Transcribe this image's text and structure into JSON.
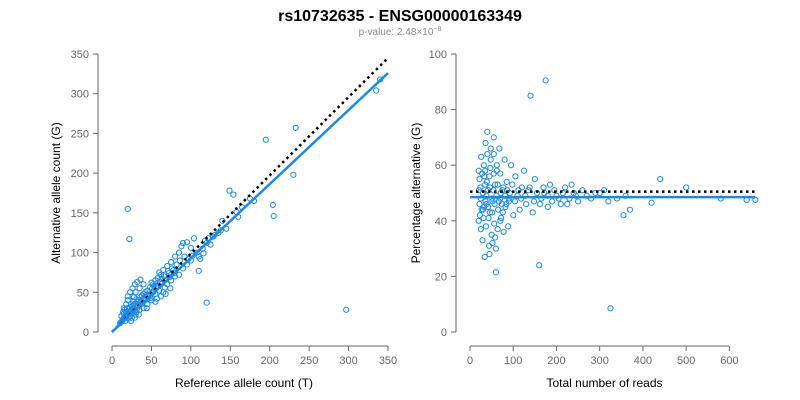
{
  "figure": {
    "title": "rs10732635 - ENSG00000163349",
    "subtitle_prefix": "p-value: 2.48×10",
    "subtitle_exp": "−8"
  },
  "colors": {
    "points": "#1e88e5",
    "fit": "#1e88e5",
    "reference": "#000000",
    "axis": "#666666"
  },
  "chart_data": [
    {
      "type": "scatter",
      "xlabel": "Reference allele count (T)",
      "ylabel": "Alternative allele count (G)",
      "xlim": [
        0,
        350
      ],
      "ylim": [
        0,
        350
      ],
      "xticks": [
        0,
        50,
        100,
        150,
        200,
        250,
        300,
        350
      ],
      "yticks": [
        0,
        50,
        100,
        150,
        200,
        250,
        300,
        350
      ],
      "grid": false,
      "fit_line": [
        [
          0,
          0
        ],
        [
          350,
          326
        ]
      ],
      "reference_line": [
        [
          0,
          0
        ],
        [
          350,
          345
        ]
      ],
      "points": [
        [
          20,
          155
        ],
        [
          22,
          117
        ],
        [
          195,
          242
        ],
        [
          233,
          257
        ],
        [
          340,
          318
        ],
        [
          335,
          304
        ],
        [
          297,
          28
        ],
        [
          120,
          37
        ],
        [
          204,
          160
        ],
        [
          205,
          146
        ],
        [
          230,
          198
        ],
        [
          175,
          168
        ],
        [
          149,
          178
        ],
        [
          154,
          173
        ],
        [
          165,
          157
        ],
        [
          158,
          151
        ],
        [
          140,
          140
        ],
        [
          135,
          125
        ],
        [
          128,
          120
        ],
        [
          120,
          112
        ],
        [
          116,
          99
        ],
        [
          112,
          92
        ],
        [
          110,
          77
        ],
        [
          104,
          118
        ],
        [
          100,
          106
        ],
        [
          95,
          113
        ],
        [
          90,
          112
        ],
        [
          88,
          108
        ],
        [
          85,
          100
        ],
        [
          80,
          95
        ],
        [
          75,
          88
        ],
        [
          70,
          83
        ],
        [
          65,
          78
        ],
        [
          62,
          72
        ],
        [
          60,
          75
        ],
        [
          58,
          68
        ],
        [
          55,
          65
        ],
        [
          52,
          60
        ],
        [
          50,
          62
        ],
        [
          48,
          56
        ],
        [
          45,
          52
        ],
        [
          42,
          50
        ],
        [
          40,
          48
        ],
        [
          38,
          46
        ],
        [
          36,
          44
        ],
        [
          34,
          40
        ],
        [
          32,
          38
        ],
        [
          30,
          36
        ],
        [
          28,
          35
        ],
        [
          27,
          30
        ],
        [
          26,
          33
        ],
        [
          25,
          28
        ],
        [
          24,
          27
        ],
        [
          23,
          25
        ],
        [
          22,
          26
        ],
        [
          21,
          24
        ],
        [
          20,
          22
        ],
        [
          19,
          21
        ],
        [
          18,
          20
        ],
        [
          17,
          19
        ],
        [
          16,
          18
        ],
        [
          15,
          17
        ],
        [
          14,
          16
        ],
        [
          13,
          14
        ],
        [
          12,
          13
        ],
        [
          11,
          12
        ],
        [
          10,
          11
        ],
        [
          15,
          23
        ],
        [
          18,
          25
        ],
        [
          25,
          18
        ],
        [
          30,
          22
        ],
        [
          35,
          28
        ],
        [
          40,
          30
        ],
        [
          45,
          35
        ],
        [
          50,
          40
        ],
        [
          55,
          48
        ],
        [
          60,
          52
        ],
        [
          70,
          60
        ],
        [
          80,
          70
        ],
        [
          90,
          80
        ],
        [
          100,
          90
        ],
        [
          110,
          95
        ],
        [
          125,
          110
        ],
        [
          145,
          130
        ],
        [
          160,
          145
        ],
        [
          180,
          165
        ],
        [
          26,
          45
        ],
        [
          30,
          50
        ],
        [
          35,
          55
        ],
        [
          40,
          60
        ],
        [
          45,
          42
        ],
        [
          55,
          38
        ],
        [
          65,
          50
        ],
        [
          75,
          65
        ],
        [
          85,
          72
        ],
        [
          95,
          85
        ],
        [
          20,
          40
        ],
        [
          24,
          35
        ],
        [
          28,
          44
        ],
        [
          32,
          30
        ],
        [
          38,
          36
        ],
        [
          42,
          40
        ],
        [
          48,
          45
        ],
        [
          52,
          50
        ],
        [
          58,
          58
        ],
        [
          64,
          62
        ],
        [
          68,
          66
        ],
        [
          72,
          74
        ],
        [
          78,
          78
        ],
        [
          82,
          85
        ],
        [
          86,
          90
        ],
        [
          92,
          95
        ],
        [
          14,
          25
        ],
        [
          16,
          28
        ],
        [
          19,
          30
        ],
        [
          22,
          20
        ],
        [
          26,
          24
        ],
        [
          29,
          27
        ],
        [
          33,
          33
        ],
        [
          37,
          39
        ],
        [
          41,
          43
        ],
        [
          46,
          47
        ],
        [
          51,
          55
        ],
        [
          56,
          57
        ],
        [
          61,
          63
        ],
        [
          66,
          70
        ],
        [
          71,
          77
        ],
        [
          76,
          80
        ],
        [
          12,
          20
        ],
        [
          17,
          14
        ],
        [
          21,
          17
        ],
        [
          23,
          31
        ],
        [
          27,
          38
        ],
        [
          31,
          25
        ],
        [
          36,
          34
        ],
        [
          39,
          41
        ],
        [
          44,
          47
        ],
        [
          49,
          43
        ],
        [
          53,
          58
        ],
        [
          57,
          61
        ],
        [
          63,
          67
        ],
        [
          67,
          56
        ],
        [
          73,
          69
        ],
        [
          79,
          74
        ],
        [
          108,
          100
        ],
        [
          115,
          105
        ],
        [
          122,
          118
        ],
        [
          130,
          122
        ],
        [
          138,
          128
        ],
        [
          118,
          115
        ],
        [
          102,
          96
        ],
        [
          97,
          92
        ],
        [
          62,
          45
        ],
        [
          68,
          48
        ],
        [
          74,
          55
        ],
        [
          57,
          42
        ],
        [
          44,
          30
        ],
        [
          34,
          22
        ],
        [
          29,
          18
        ],
        [
          24,
          14
        ],
        [
          15,
          30
        ],
        [
          18,
          35
        ],
        [
          20,
          45
        ],
        [
          23,
          50
        ],
        [
          26,
          55
        ],
        [
          29,
          60
        ],
        [
          32,
          63
        ],
        [
          36,
          66
        ]
      ]
    },
    {
      "type": "scatter",
      "xlabel": "Total number of reads",
      "ylabel": "Percentage alternative (G)",
      "xlim": [
        0,
        650
      ],
      "ylim": [
        0,
        100
      ],
      "xticks": [
        0,
        100,
        200,
        300,
        400,
        500,
        600
      ],
      "yticks": [
        0,
        20,
        40,
        60,
        80,
        100
      ],
      "grid": false,
      "fit_line": [
        [
          0,
          48.5
        ],
        [
          660,
          48.5
        ]
      ],
      "reference_line": [
        [
          0,
          50.5
        ],
        [
          660,
          50.5
        ]
      ],
      "points": [
        [
          175,
          90.5
        ],
        [
          140,
          85
        ],
        [
          325,
          8.5
        ],
        [
          160,
          24
        ],
        [
          60,
          21.5
        ],
        [
          660,
          47.5
        ],
        [
          640,
          47.5
        ],
        [
          580,
          48
        ],
        [
          500,
          52
        ],
        [
          440,
          55
        ],
        [
          420,
          46.5
        ],
        [
          370,
          44
        ],
        [
          355,
          42
        ],
        [
          360,
          49
        ],
        [
          340,
          48
        ],
        [
          310,
          51
        ],
        [
          290,
          50
        ],
        [
          270,
          49
        ],
        [
          250,
          47
        ],
        [
          240,
          50
        ],
        [
          230,
          48
        ],
        [
          220,
          52
        ],
        [
          210,
          46
        ],
        [
          200,
          49
        ],
        [
          190,
          47
        ],
        [
          185,
          53
        ],
        [
          180,
          45
        ],
        [
          172,
          50
        ],
        [
          165,
          48
        ],
        [
          150,
          55
        ],
        [
          145,
          43
        ],
        [
          135,
          51
        ],
        [
          130,
          46
        ],
        [
          125,
          58
        ],
        [
          120,
          52
        ],
        [
          115,
          44
        ],
        [
          110,
          49
        ],
        [
          105,
          56
        ],
        [
          100,
          42
        ],
        [
          95,
          60
        ],
        [
          90,
          47
        ],
        [
          88,
          38
        ],
        [
          85,
          54
        ],
        [
          82,
          45
        ],
        [
          80,
          62
        ],
        [
          78,
          36
        ],
        [
          75,
          51
        ],
        [
          72,
          41
        ],
        [
          70,
          48
        ],
        [
          68,
          66
        ],
        [
          65,
          44
        ],
        [
          62,
          58
        ],
        [
          60,
          30
        ],
        [
          58,
          53
        ],
        [
          56,
          39
        ],
        [
          55,
          70
        ],
        [
          52,
          47
        ],
        [
          50,
          35
        ],
        [
          48,
          62
        ],
        [
          46,
          43
        ],
        [
          45,
          56
        ],
        [
          44,
          31
        ],
        [
          42,
          51
        ],
        [
          40,
          64
        ],
        [
          38,
          46
        ],
        [
          37,
          38
        ],
        [
          36,
          68
        ],
        [
          35,
          53
        ],
        [
          34,
          27
        ],
        [
          33,
          45
        ],
        [
          32,
          60
        ],
        [
          31,
          41
        ],
        [
          30,
          50
        ],
        [
          29,
          33
        ],
        [
          28,
          57
        ],
        [
          27,
          44
        ],
        [
          26,
          63
        ],
        [
          25,
          48
        ],
        [
          25,
          37
        ],
        [
          24,
          52
        ],
        [
          23,
          42
        ],
        [
          22,
          55
        ],
        [
          22,
          46
        ],
        [
          21,
          51
        ],
        [
          20,
          58
        ],
        [
          20,
          40
        ],
        [
          40,
          72
        ],
        [
          48,
          66
        ],
        [
          55,
          64
        ],
        [
          62,
          60
        ],
        [
          70,
          57
        ],
        [
          45,
          28
        ],
        [
          52,
          32
        ],
        [
          58,
          34
        ],
        [
          64,
          37
        ],
        [
          70,
          40
        ],
        [
          76,
          43
        ],
        [
          84,
          46
        ],
        [
          92,
          50
        ],
        [
          98,
          53
        ],
        [
          104,
          47
        ],
        [
          112,
          51
        ],
        [
          118,
          48
        ],
        [
          128,
          49
        ],
        [
          138,
          52
        ],
        [
          148,
          47
        ],
        [
          155,
          50
        ],
        [
          162,
          46
        ],
        [
          170,
          52
        ],
        [
          180,
          49
        ],
        [
          195,
          51
        ],
        [
          205,
          48
        ],
        [
          215,
          50
        ],
        [
          225,
          46
        ],
        [
          235,
          53
        ],
        [
          245,
          49
        ],
        [
          260,
          51
        ],
        [
          280,
          48
        ],
        [
          300,
          50
        ],
        [
          320,
          47
        ],
        [
          35,
          58
        ],
        [
          38,
          49
        ],
        [
          42,
          45
        ],
        [
          46,
          52
        ],
        [
          50,
          48
        ],
        [
          54,
          51
        ],
        [
          57,
          46
        ],
        [
          61,
          49
        ],
        [
          64,
          53
        ],
        [
          67,
          47
        ],
        [
          71,
          50
        ],
        [
          74,
          46
        ],
        [
          77,
          52
        ],
        [
          81,
          49
        ],
        [
          86,
          51
        ],
        [
          91,
          48
        ],
        [
          30,
          44
        ],
        [
          33,
          56
        ],
        [
          36,
          47
        ],
        [
          39,
          54
        ],
        [
          43,
          41
        ],
        [
          47,
          59
        ],
        [
          51,
          43
        ],
        [
          55,
          57
        ]
      ]
    }
  ]
}
